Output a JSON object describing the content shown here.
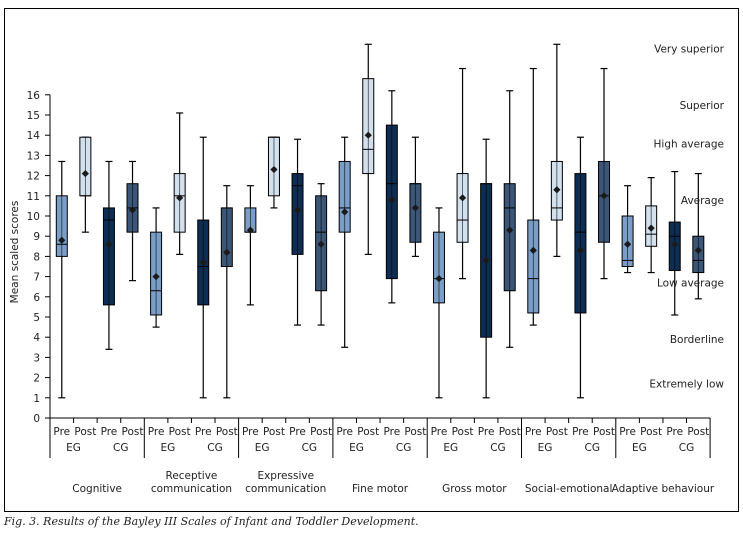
{
  "caption": "Fig. 3. Results of the Bayley III Scales of Infant and Toddler Development.",
  "chart_data": {
    "type": "boxplot",
    "title": "",
    "ylabel": "Mean scaled scores",
    "xlabel": "",
    "ylim": [
      0,
      16
    ],
    "yticks": [
      0,
      1,
      2,
      3,
      4,
      5,
      6,
      7,
      8,
      9,
      10,
      11,
      12,
      13,
      14,
      15,
      16
    ],
    "grid": false,
    "legend": "none",
    "series_colors": {
      "Pre EG": "#7a9ec7",
      "Post EG": "#d3e0ee",
      "Pre CG": "#0e2d52",
      "Post CG": "#3b5677"
    },
    "subgroup_labels": [
      "Pre",
      "Post",
      "Pre",
      "Post"
    ],
    "group_labels": [
      "EG",
      "CG"
    ],
    "categories": [
      "Cognitive",
      "Receptive communication",
      "Expressive communication",
      "Fine motor",
      "Gross motor",
      "Social-emotional",
      "Adaptive behaviour"
    ],
    "category_label_lines": [
      [
        "Cognitive"
      ],
      [
        "Receptive",
        "communication"
      ],
      [
        "Expressive",
        "communication"
      ],
      [
        "Fine motor"
      ],
      [
        "Gross motor"
      ],
      [
        "Social-emotional"
      ],
      [
        "Adaptive behaviour"
      ]
    ],
    "classification_bands": [
      {
        "label": "Very superior",
        "level": 18.3
      },
      {
        "label": "Superior",
        "level": 15.5
      },
      {
        "label": "High average",
        "level": 13.6
      },
      {
        "label": "Average",
        "level": 10.8
      },
      {
        "label": "Low average",
        "level": 6.7
      },
      {
        "label": "Borderline",
        "level": 3.9
      },
      {
        "label": "Extremely low",
        "level": 1.7
      }
    ],
    "boxes": [
      {
        "category": "Cognitive",
        "series": "Pre EG",
        "min": 1.0,
        "q1": 8.0,
        "median": 8.6,
        "q3": 11.0,
        "max": 12.7,
        "mean": 8.8
      },
      {
        "category": "Cognitive",
        "series": "Post EG",
        "min": 9.2,
        "q1": 11.0,
        "median": 11.0,
        "q3": 13.9,
        "max": 13.9,
        "mean": 12.1
      },
      {
        "category": "Cognitive",
        "series": "Pre CG",
        "min": 3.4,
        "q1": 5.6,
        "median": 9.8,
        "q3": 10.4,
        "max": 12.7,
        "mean": 8.6
      },
      {
        "category": "Cognitive",
        "series": "Post CG",
        "min": 6.8,
        "q1": 9.2,
        "median": 10.4,
        "q3": 11.6,
        "max": 12.7,
        "mean": 10.3
      },
      {
        "category": "Receptive communication",
        "series": "Pre EG",
        "min": 4.5,
        "q1": 5.1,
        "median": 6.3,
        "q3": 9.2,
        "max": 10.4,
        "mean": 7.0
      },
      {
        "category": "Receptive communication",
        "series": "Post EG",
        "min": 8.1,
        "q1": 9.2,
        "median": 11.0,
        "q3": 12.1,
        "max": 15.1,
        "mean": 10.9
      },
      {
        "category": "Receptive communication",
        "series": "Pre CG",
        "min": 1.0,
        "q1": 5.6,
        "median": 7.5,
        "q3": 9.8,
        "max": 13.9,
        "mean": 7.7
      },
      {
        "category": "Receptive communication",
        "series": "Post CG",
        "min": 1.0,
        "q1": 7.5,
        "median": 10.4,
        "q3": 10.4,
        "max": 11.5,
        "mean": 8.2
      },
      {
        "category": "Expressive communication",
        "series": "Pre EG",
        "min": 5.6,
        "q1": 9.2,
        "median": 9.2,
        "q3": 10.4,
        "max": 11.5,
        "mean": 9.3
      },
      {
        "category": "Expressive communication",
        "series": "Post EG",
        "min": 10.4,
        "q1": 11.0,
        "median": 13.9,
        "q3": 13.9,
        "max": 13.9,
        "mean": 12.3
      },
      {
        "category": "Expressive communication",
        "series": "Pre CG",
        "min": 4.6,
        "q1": 8.1,
        "median": 11.5,
        "q3": 12.1,
        "max": 13.8,
        "mean": 10.3
      },
      {
        "category": "Expressive communication",
        "series": "Post CG",
        "min": 4.6,
        "q1": 6.3,
        "median": 9.2,
        "q3": 11.0,
        "max": 11.6,
        "mean": 8.6
      },
      {
        "category": "Fine motor",
        "series": "Pre EG",
        "min": 3.5,
        "q1": 9.2,
        "median": 10.4,
        "q3": 12.7,
        "max": 13.9,
        "mean": 10.2
      },
      {
        "category": "Fine motor",
        "series": "Post EG",
        "min": 8.1,
        "q1": 12.1,
        "median": 13.3,
        "q3": 16.8,
        "max": 18.5,
        "mean": 14.0
      },
      {
        "category": "Fine motor",
        "series": "Pre CG",
        "min": 5.7,
        "q1": 6.9,
        "median": 11.6,
        "q3": 14.5,
        "max": 16.2,
        "mean": 10.8
      },
      {
        "category": "Fine motor",
        "series": "Post CG",
        "min": 8.0,
        "q1": 8.7,
        "median": 11.6,
        "q3": 11.6,
        "max": 13.9,
        "mean": 10.4
      },
      {
        "category": "Gross motor",
        "series": "Pre EG",
        "min": 1.0,
        "q1": 5.7,
        "median": 6.9,
        "q3": 9.2,
        "max": 10.4,
        "mean": 6.9
      },
      {
        "category": "Gross motor",
        "series": "Post EG",
        "min": 6.9,
        "q1": 8.7,
        "median": 9.8,
        "q3": 12.1,
        "max": 17.3,
        "mean": 10.9
      },
      {
        "category": "Gross motor",
        "series": "Pre CG",
        "min": 1.0,
        "q1": 4.0,
        "median": 11.6,
        "q3": 11.6,
        "max": 13.8,
        "mean": 7.8
      },
      {
        "category": "Gross motor",
        "series": "Post CG",
        "min": 3.5,
        "q1": 6.3,
        "median": 10.4,
        "q3": 11.6,
        "max": 16.2,
        "mean": 9.3
      },
      {
        "category": "Social-emotional",
        "series": "Pre EG",
        "min": 4.6,
        "q1": 5.2,
        "median": 6.9,
        "q3": 9.8,
        "max": 17.3,
        "mean": 8.3
      },
      {
        "category": "Social-emotional",
        "series": "Post EG",
        "min": 8.0,
        "q1": 9.8,
        "median": 10.4,
        "q3": 12.7,
        "max": 18.5,
        "mean": 11.3
      },
      {
        "category": "Social-emotional",
        "series": "Pre CG",
        "min": 1.0,
        "q1": 5.2,
        "median": 9.2,
        "q3": 12.1,
        "max": 13.9,
        "mean": 8.3
      },
      {
        "category": "Social-emotional",
        "series": "Post CG",
        "min": 6.9,
        "q1": 8.7,
        "median": 11.0,
        "q3": 12.7,
        "max": 17.3,
        "mean": 11.0
      },
      {
        "category": "Adaptive behaviour",
        "series": "Pre EG",
        "min": 7.2,
        "q1": 7.5,
        "median": 7.8,
        "q3": 10.0,
        "max": 11.5,
        "mean": 8.6
      },
      {
        "category": "Adaptive behaviour",
        "series": "Post EG",
        "min": 7.2,
        "q1": 8.5,
        "median": 9.1,
        "q3": 10.5,
        "max": 11.9,
        "mean": 9.4
      },
      {
        "category": "Adaptive behaviour",
        "series": "Pre CG",
        "min": 5.1,
        "q1": 7.3,
        "median": 9.0,
        "q3": 9.7,
        "max": 12.2,
        "mean": 8.6
      },
      {
        "category": "Adaptive behaviour",
        "series": "Post CG",
        "min": 5.9,
        "q1": 7.2,
        "median": 7.8,
        "q3": 9.0,
        "max": 12.1,
        "mean": 8.3
      }
    ]
  }
}
